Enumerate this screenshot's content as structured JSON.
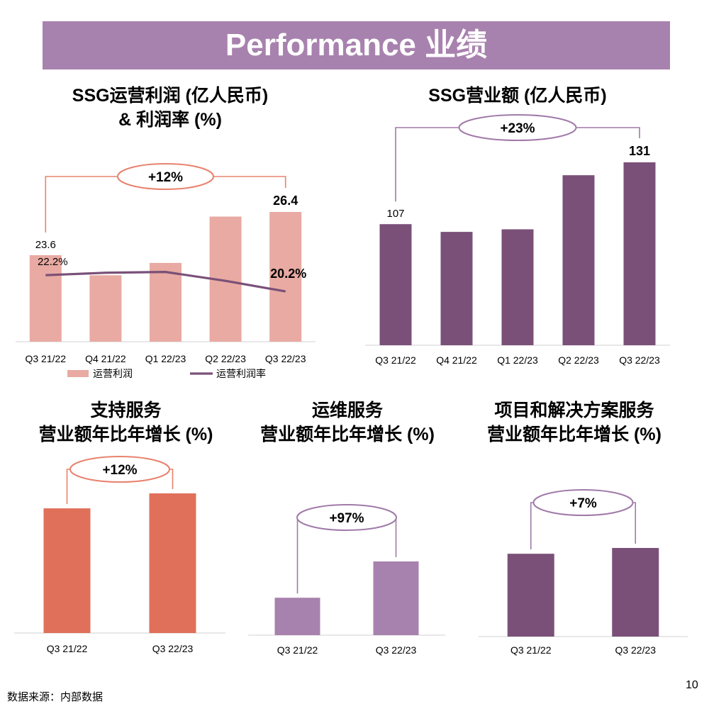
{
  "banner": {
    "title": "Performance 业绩"
  },
  "colors": {
    "banner": "#a882ae",
    "salmon": "#e8aaa2",
    "plum": "#7a5078",
    "coral": "#e0705a",
    "lilac": "#a882ae",
    "bracket_orange": "#e8826d",
    "bracket_purple": "#a07aa8"
  },
  "panels": {
    "p1": {
      "title_line1": "SSG运营利润 (亿人民币)",
      "title_line2": "& 利润率 (%)"
    },
    "p2": {
      "title_line1": "SSG营业额 (亿人民币)"
    },
    "p3": {
      "title_line1": "支持服务",
      "title_line2": "营业额年比年增长 (%)"
    },
    "p4": {
      "title_line1": "运维服务",
      "title_line2": "营业额年比年增长 (%)"
    },
    "p5": {
      "title_line1": "项目和解决方案服务",
      "title_line2": "营业额年比年增长 (%)"
    }
  },
  "chart_data": [
    {
      "type": "bar",
      "categories": [
        "Q3 21/22",
        "Q4 21/22",
        "Q1 22/23",
        "Q2 22/23",
        "Q3 22/23"
      ],
      "series": [
        {
          "name": "运营利润",
          "type": "bar",
          "values": [
            23.6,
            22.3,
            23.1,
            26.1,
            26.4
          ],
          "labels": [
            "23.6",
            "",
            "",
            "",
            "26.4"
          ]
        },
        {
          "name": "运营利润率",
          "type": "line",
          "values": [
            22.2,
            22.5,
            22.6,
            21.5,
            20.2
          ],
          "labels": [
            "22.2%",
            "",
            "",
            "",
            "20.2%"
          ]
        }
      ],
      "bar_range": [
        18,
        26.4
      ],
      "line_range": [
        14,
        30
      ],
      "annotation": "+12%",
      "legend_position": "bottom"
    },
    {
      "type": "bar",
      "categories": [
        "Q3 21/22",
        "Q4 21/22",
        "Q1 22/23",
        "Q2 22/23",
        "Q3 22/23"
      ],
      "values": [
        107,
        104,
        105,
        126,
        131
      ],
      "labels": [
        "107",
        "",
        "",
        "",
        "131"
      ],
      "ylim": [
        60,
        131
      ],
      "annotation": "+23%"
    },
    {
      "type": "bar",
      "categories": [
        "Q3 21/22",
        "Q3 22/23"
      ],
      "values": [
        100,
        112
      ],
      "ylim": [
        0,
        112
      ],
      "annotation": "+12%"
    },
    {
      "type": "bar",
      "categories": [
        "Q3 21/22",
        "Q3 22/23"
      ],
      "values": [
        100,
        197
      ],
      "ylim": [
        0,
        197
      ],
      "annotation": "+97%"
    },
    {
      "type": "bar",
      "categories": [
        "Q3 21/22",
        "Q3 22/23"
      ],
      "values": [
        100,
        107
      ],
      "ylim": [
        0,
        107
      ],
      "annotation": "+7%"
    }
  ],
  "footer": {
    "source": "数据来源：内部数据",
    "page_number": "10"
  }
}
